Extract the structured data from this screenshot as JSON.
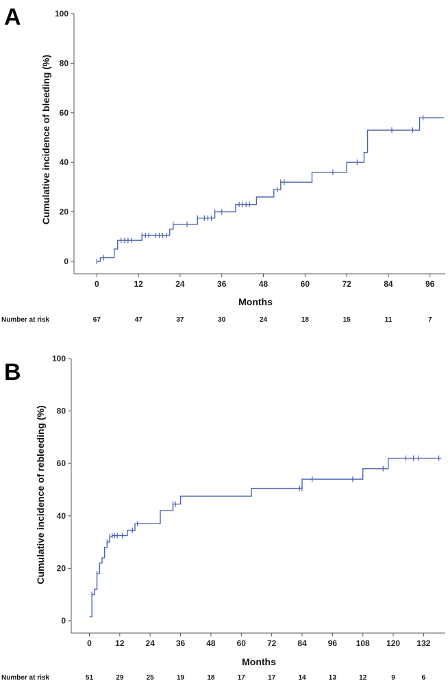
{
  "colors": {
    "curve": "#4a63b5",
    "axis": "#555555",
    "text": "#111111"
  },
  "chart_data": [
    {
      "type": "line",
      "step": true,
      "panel_label": "A",
      "xlabel": "Months",
      "ylabel": "Cumulative incidence of bleeding (%)",
      "xlim": [
        -5,
        100
      ],
      "ylim": [
        0,
        100
      ],
      "xticks": [
        "0",
        "12",
        "24",
        "36",
        "48",
        "60",
        "72",
        "84",
        "96"
      ],
      "yticks": [
        "0",
        "20",
        "40",
        "60",
        "80",
        "100"
      ],
      "at_risk_label": "Number at risk",
      "at_risk": [
        "67",
        "47",
        "37",
        "30",
        "24",
        "18",
        "15",
        "11",
        "7"
      ],
      "grid": false,
      "series": [
        {
          "x": [
            0,
            1,
            5,
            6,
            13,
            21,
            22,
            29,
            34,
            40,
            46,
            51,
            53,
            62,
            72,
            77,
            78,
            93,
            100
          ],
          "y": [
            0,
            1.5,
            5,
            8.5,
            10.5,
            13,
            15,
            17.5,
            20,
            23,
            26,
            29,
            32,
            36,
            40,
            44,
            53,
            58,
            58
          ],
          "censored_x": [
            0,
            2,
            7,
            8,
            9,
            10,
            13,
            14,
            15,
            17,
            18,
            19,
            20,
            22,
            26,
            29,
            31,
            32,
            33,
            34,
            36,
            41,
            42,
            43,
            44,
            52,
            53,
            54,
            68,
            75,
            85,
            91,
            94
          ],
          "censored_y": [
            0,
            1.5,
            8.5,
            8.5,
            8.5,
            8.5,
            10.5,
            10.5,
            10.5,
            10.5,
            10.5,
            10.5,
            10.5,
            15,
            15,
            17.5,
            17.5,
            17.5,
            17.5,
            20,
            20,
            23,
            23,
            23,
            23,
            29,
            32,
            32,
            36,
            40,
            53,
            53,
            58
          ]
        }
      ]
    },
    {
      "type": "line",
      "step": true,
      "panel_label": "B",
      "xlabel": "Months",
      "ylabel": "Cumulative incidence of rebleeding (%)",
      "xlim": [
        -5,
        140
      ],
      "ylim": [
        0,
        100
      ],
      "xticks": [
        "0",
        "12",
        "24",
        "36",
        "48",
        "60",
        "72",
        "84",
        "96",
        "108",
        "120",
        "132"
      ],
      "yticks": [
        "0",
        "20",
        "40",
        "60",
        "80",
        "100"
      ],
      "at_risk_label": "Number at risk",
      "at_risk": [
        "51",
        "29",
        "25",
        "19",
        "18",
        "17",
        "17",
        "14",
        "13",
        "12",
        "9",
        "6"
      ],
      "grid": false,
      "series": [
        {
          "x": [
            0,
            1,
            2,
            3,
            4,
            5,
            6,
            7,
            8,
            9,
            15,
            18,
            28,
            33,
            36,
            64,
            84,
            108,
            118,
            139
          ],
          "y": [
            1.5,
            10,
            12,
            18,
            22,
            24,
            28,
            30,
            32,
            32.5,
            34.5,
            37,
            42,
            44.5,
            47.5,
            50.5,
            54,
            58,
            62,
            62
          ],
          "censored_x": [
            1,
            3,
            7,
            8,
            9,
            10,
            11,
            13,
            17,
            19,
            33,
            34,
            83,
            84,
            88,
            104,
            116,
            125,
            128,
            130,
            138
          ],
          "censored_y": [
            10,
            18,
            30,
            32,
            32.5,
            32.5,
            32.5,
            32.5,
            34.5,
            37,
            44.5,
            44.5,
            50.5,
            50.5,
            54,
            54,
            58,
            62,
            62,
            62,
            62
          ]
        }
      ]
    }
  ]
}
